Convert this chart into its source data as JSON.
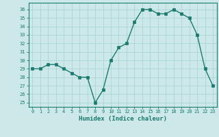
{
  "x": [
    0,
    1,
    2,
    3,
    4,
    5,
    6,
    7,
    8,
    9,
    10,
    11,
    12,
    13,
    14,
    15,
    16,
    17,
    18,
    19,
    20,
    21,
    22,
    23
  ],
  "y": [
    29,
    29,
    29.5,
    29.5,
    29,
    28.5,
    28,
    28,
    25,
    26.5,
    30,
    31.5,
    32,
    34.5,
    36,
    36,
    35.5,
    35.5,
    36,
    35.5,
    35,
    33,
    29,
    27
  ],
  "xlabel": "Humidex (Indice chaleur)",
  "ylim_min": 24.5,
  "ylim_max": 36.8,
  "xlim_min": -0.5,
  "xlim_max": 23.5,
  "line_color": "#1a7a6e",
  "bg_color": "#cce8e8",
  "grid_color": "#aad4d4",
  "tick_color": "#1a7a6e",
  "label_color": "#1a7a6e"
}
